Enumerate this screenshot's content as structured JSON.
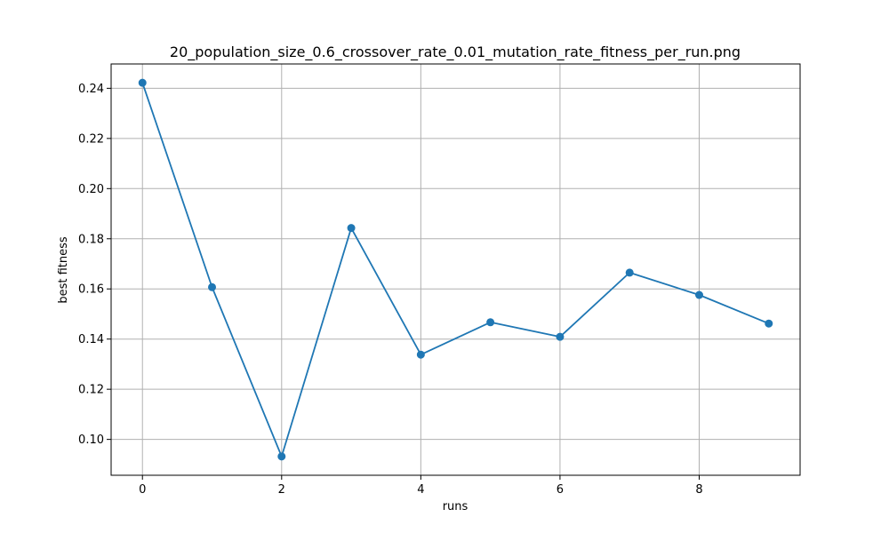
{
  "chart_data": {
    "type": "line",
    "title": "20_population_size_0.6_crossover_rate_0.01_mutation_rate_fitness_per_run.png",
    "xlabel": "runs",
    "ylabel": "best fitness",
    "x": [
      0,
      1,
      2,
      3,
      4,
      5,
      6,
      7,
      8,
      9
    ],
    "series": [
      {
        "values": [
          0.2422,
          0.1607,
          0.0932,
          0.1843,
          0.1338,
          0.1467,
          0.1409,
          0.1665,
          0.1576,
          0.1462
        ],
        "color": "#1f77b4",
        "marker": "circle"
      }
    ],
    "xlim": [
      -0.45,
      9.45
    ],
    "ylim": [
      0.0857,
      0.2497
    ],
    "xticks": [
      0,
      2,
      4,
      6,
      8
    ],
    "yticks": [
      0.1,
      0.12,
      0.14,
      0.16,
      0.18,
      0.2,
      0.22,
      0.24
    ],
    "xtick_labels": [
      "0",
      "2",
      "4",
      "6",
      "8"
    ],
    "ytick_labels": [
      "0.10",
      "0.12",
      "0.14",
      "0.16",
      "0.18",
      "0.20",
      "0.22",
      "0.24"
    ],
    "grid": true,
    "grid_color": "#b0b0b0"
  }
}
